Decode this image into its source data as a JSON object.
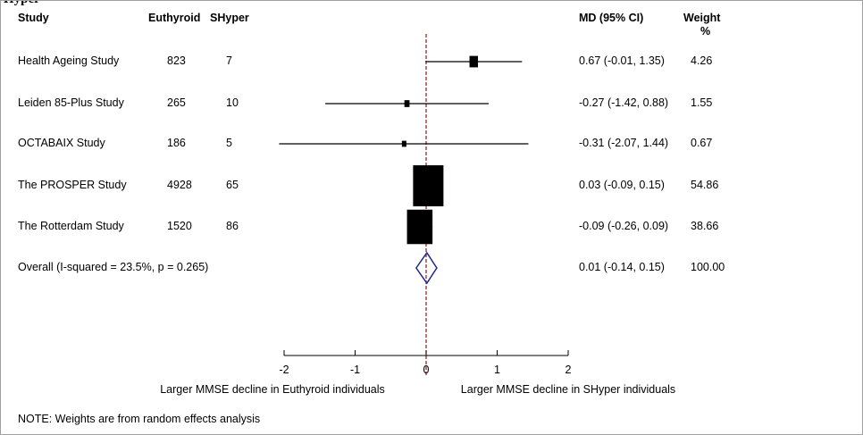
{
  "cropped_title": "Hyper",
  "headers": {
    "study": "Study",
    "euthyroid": "Euthyroid",
    "shyper": "SHyper",
    "md": "MD (95% CI)",
    "weight": "Weight",
    "weight_unit": "%"
  },
  "note": "NOTE: Weights are from random effects analysis",
  "chart_data": {
    "type": "forest",
    "title": "",
    "xlim": [
      -2,
      2
    ],
    "xticks": [
      -2,
      -1,
      0,
      1,
      2
    ],
    "xlabel_left": "Larger MMSE decline in Euthyroid individuals",
    "xlabel_right": "Larger MMSE decline in SHyper individuals",
    "reference_line": 0,
    "studies": [
      {
        "name": "Health Ageing Study",
        "euthyroid": "823",
        "shyper": "7",
        "md": 0.67,
        "lo": -0.01,
        "hi": 1.35,
        "ci_text": "0.67 (-0.01, 1.35)",
        "weight": 4.26,
        "weight_text": "4.26"
      },
      {
        "name": "Leiden 85-Plus Study",
        "euthyroid": "265",
        "shyper": "10",
        "md": -0.27,
        "lo": -1.42,
        "hi": 0.88,
        "ci_text": "-0.27 (-1.42, 0.88)",
        "weight": 1.55,
        "weight_text": "1.55"
      },
      {
        "name": "OCTABAIX Study",
        "euthyroid": "186",
        "shyper": "5",
        "md": -0.31,
        "lo": -2.07,
        "hi": 1.44,
        "ci_text": "-0.31 (-2.07, 1.44)",
        "weight": 0.67,
        "weight_text": "0.67"
      },
      {
        "name": "The PROSPER Study",
        "euthyroid": "4928",
        "shyper": "65",
        "md": 0.03,
        "lo": -0.09,
        "hi": 0.15,
        "ci_text": "0.03 (-0.09, 0.15)",
        "weight": 54.86,
        "weight_text": "54.86"
      },
      {
        "name": "The Rotterdam Study",
        "euthyroid": "1520",
        "shyper": "86",
        "md": -0.09,
        "lo": -0.26,
        "hi": 0.09,
        "ci_text": "-0.09 (-0.26, 0.09)",
        "weight": 38.66,
        "weight_text": "38.66"
      }
    ],
    "overall": {
      "label": "Overall  (I-squared = 23.5%, p = 0.265)",
      "md": 0.01,
      "lo": -0.14,
      "hi": 0.15,
      "ci_text": "0.01 (-0.14, 0.15)",
      "weight_text": "100.00"
    },
    "colors": {
      "marker": "#000000",
      "diamond": "#1f2a8a",
      "ref_line": "#8b1a1a"
    }
  }
}
